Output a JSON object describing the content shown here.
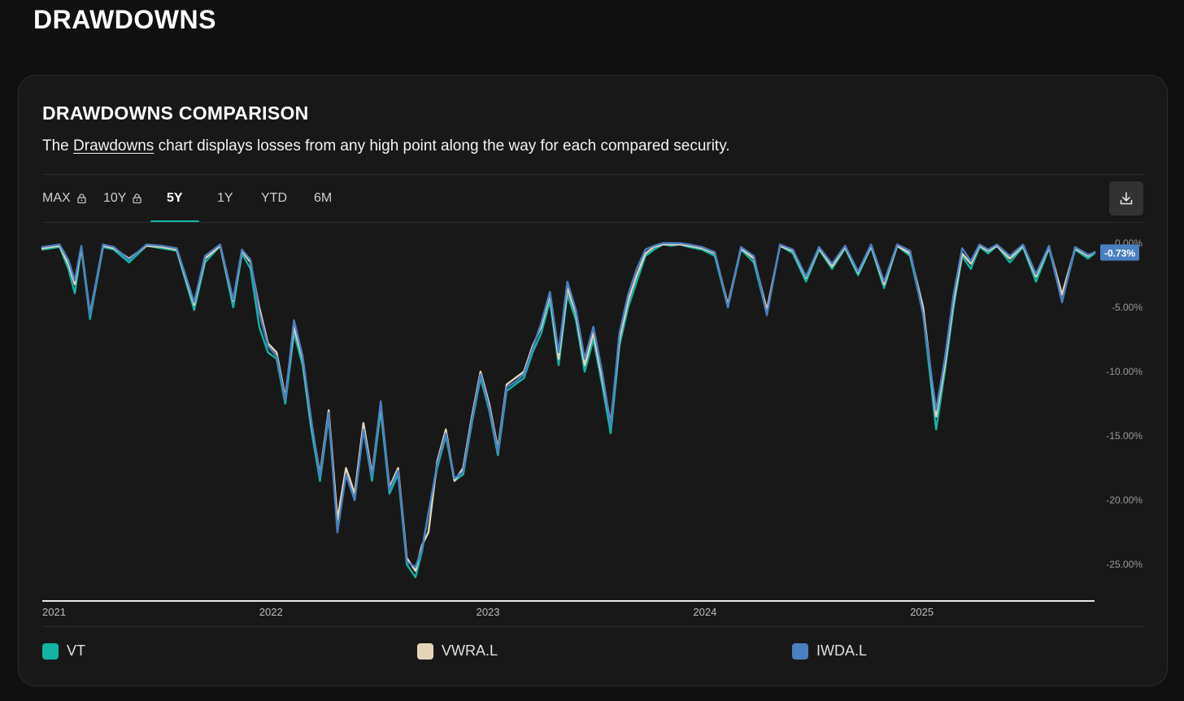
{
  "page": {
    "title": "DRAWDOWNS"
  },
  "card": {
    "title": "DRAWDOWNS COMPARISON",
    "desc_prefix": "The ",
    "desc_link": "Drawdowns",
    "desc_suffix": " chart displays losses from any high point along the way for each compared security."
  },
  "tabs": [
    {
      "label": "MAX",
      "locked": true,
      "active": false
    },
    {
      "label": "10Y",
      "locked": true,
      "active": false
    },
    {
      "label": "5Y",
      "locked": false,
      "active": true
    },
    {
      "label": "1Y",
      "locked": false,
      "active": false
    },
    {
      "label": "YTD",
      "locked": false,
      "active": false
    },
    {
      "label": "6M",
      "locked": false,
      "active": false
    }
  ],
  "toolbar": {
    "download_icon": "download-icon"
  },
  "colors": {
    "accent": "#14b3a4",
    "vt": "#14b3a4",
    "vwra": "#e6d4b8",
    "iwda": "#4a7fc1",
    "badge": "#4a7fc1"
  },
  "chart_data": {
    "type": "line",
    "title": "",
    "xlabel": "",
    "ylabel": "",
    "x_ticks": [
      "2021",
      "2022",
      "2023",
      "2024",
      "2025"
    ],
    "y_ticks": [
      "0.00%",
      "-5.00%",
      "-10.00%",
      "-15.00%",
      "-20.00%",
      "-25.00%"
    ],
    "ylim": [
      -27,
      0
    ],
    "xlim": [
      2021.0,
      2025.85
    ],
    "current_value_label": "-0.73%",
    "grid": false,
    "legend_position": "bottom",
    "series": [
      {
        "name": "VT",
        "color": "#14b3a4",
        "x": [
          2021.0,
          2021.08,
          2021.12,
          2021.15,
          2021.18,
          2021.22,
          2021.28,
          2021.33,
          2021.4,
          2021.48,
          2021.55,
          2021.62,
          2021.7,
          2021.75,
          2021.82,
          2021.88,
          2021.92,
          2021.96,
          2022.0,
          2022.04,
          2022.08,
          2022.12,
          2022.16,
          2022.2,
          2022.24,
          2022.28,
          2022.32,
          2022.36,
          2022.4,
          2022.44,
          2022.48,
          2022.52,
          2022.56,
          2022.6,
          2022.64,
          2022.68,
          2022.72,
          2022.75,
          2022.78,
          2022.82,
          2022.86,
          2022.9,
          2022.94,
          2022.98,
          2023.02,
          2023.06,
          2023.1,
          2023.14,
          2023.18,
          2023.22,
          2023.26,
          2023.3,
          2023.34,
          2023.38,
          2023.42,
          2023.46,
          2023.5,
          2023.54,
          2023.58,
          2023.62,
          2023.66,
          2023.7,
          2023.74,
          2023.78,
          2023.82,
          2023.86,
          2023.9,
          2023.94,
          2023.98,
          2024.04,
          2024.1,
          2024.16,
          2024.22,
          2024.28,
          2024.34,
          2024.4,
          2024.46,
          2024.52,
          2024.58,
          2024.64,
          2024.7,
          2024.76,
          2024.82,
          2024.88,
          2024.94,
          2025.0,
          2025.06,
          2025.12,
          2025.16,
          2025.2,
          2025.24,
          2025.28,
          2025.32,
          2025.36,
          2025.4,
          2025.46,
          2025.52,
          2025.58,
          2025.64,
          2025.7,
          2025.76,
          2025.82,
          2025.85
        ],
        "y": [
          -0.5,
          -0.3,
          -2.0,
          -3.9,
          -0.4,
          -5.9,
          -0.3,
          -0.5,
          -1.5,
          -0.2,
          -0.4,
          -0.6,
          -5.2,
          -1.5,
          -0.2,
          -5.0,
          -0.8,
          -2.0,
          -6.5,
          -8.5,
          -9.0,
          -12.5,
          -7.0,
          -9.5,
          -14.5,
          -18.5,
          -13.5,
          -22.0,
          -18.0,
          -20.0,
          -14.5,
          -18.5,
          -13.0,
          -19.5,
          -18.0,
          -25.0,
          -26.0,
          -24.0,
          -21.0,
          -17.5,
          -15.0,
          -18.5,
          -18.0,
          -14.0,
          -10.5,
          -13.0,
          -16.5,
          -11.5,
          -11.0,
          -10.5,
          -8.5,
          -7.0,
          -4.5,
          -9.5,
          -4.0,
          -6.0,
          -10.0,
          -7.5,
          -11.0,
          -14.8,
          -8.0,
          -5.0,
          -3.0,
          -1.0,
          -0.5,
          -0.1,
          -0.2,
          -0.1,
          -0.3,
          -0.5,
          -1.0,
          -5.0,
          -0.5,
          -1.5,
          -5.5,
          -0.2,
          -0.8,
          -3.0,
          -0.5,
          -2.0,
          -0.4,
          -2.5,
          -0.3,
          -3.5,
          -0.2,
          -1.0,
          -5.5,
          -14.5,
          -10.0,
          -5.0,
          -1.0,
          -2.0,
          -0.3,
          -0.8,
          -0.2,
          -1.5,
          -0.3,
          -3.0,
          -0.4,
          -4.5,
          -0.5,
          -1.2,
          -0.8
        ]
      },
      {
        "name": "VWRA.L",
        "color": "#e6d4b8",
        "x": [
          2021.0,
          2021.08,
          2021.12,
          2021.15,
          2021.18,
          2021.22,
          2021.28,
          2021.33,
          2021.4,
          2021.48,
          2021.55,
          2021.62,
          2021.7,
          2021.75,
          2021.82,
          2021.88,
          2021.92,
          2021.96,
          2022.0,
          2022.04,
          2022.08,
          2022.12,
          2022.16,
          2022.2,
          2022.24,
          2022.28,
          2022.32,
          2022.36,
          2022.4,
          2022.44,
          2022.48,
          2022.52,
          2022.56,
          2022.6,
          2022.64,
          2022.68,
          2022.72,
          2022.75,
          2022.78,
          2022.82,
          2022.86,
          2022.9,
          2022.94,
          2022.98,
          2023.02,
          2023.06,
          2023.1,
          2023.14,
          2023.18,
          2023.22,
          2023.26,
          2023.3,
          2023.34,
          2023.38,
          2023.42,
          2023.46,
          2023.5,
          2023.54,
          2023.58,
          2023.62,
          2023.66,
          2023.7,
          2023.74,
          2023.78,
          2023.82,
          2023.86,
          2023.9,
          2023.94,
          2023.98,
          2024.04,
          2024.1,
          2024.16,
          2024.22,
          2024.28,
          2024.34,
          2024.4,
          2024.46,
          2024.52,
          2024.58,
          2024.64,
          2024.7,
          2024.76,
          2024.82,
          2024.88,
          2024.94,
          2025.0,
          2025.06,
          2025.12,
          2025.16,
          2025.2,
          2025.24,
          2025.28,
          2025.32,
          2025.36,
          2025.4,
          2025.46,
          2025.52,
          2025.58,
          2025.64,
          2025.7,
          2025.76,
          2025.82,
          2025.85
        ],
        "y": [
          -0.4,
          -0.2,
          -1.6,
          -3.2,
          -0.3,
          -5.5,
          -0.2,
          -0.4,
          -1.2,
          -0.2,
          -0.3,
          -0.5,
          -4.8,
          -1.2,
          -0.2,
          -4.5,
          -0.6,
          -1.5,
          -5.0,
          -7.8,
          -8.5,
          -12.0,
          -6.5,
          -9.0,
          -14.0,
          -18.0,
          -13.0,
          -21.5,
          -17.5,
          -19.5,
          -14.0,
          -18.0,
          -12.5,
          -19.0,
          -17.5,
          -24.5,
          -25.5,
          -23.5,
          -22.5,
          -17.0,
          -14.5,
          -18.5,
          -17.5,
          -13.5,
          -10.0,
          -12.5,
          -16.0,
          -11.0,
          -10.5,
          -10.0,
          -8.0,
          -6.5,
          -4.0,
          -9.0,
          -3.5,
          -5.5,
          -9.5,
          -7.0,
          -10.5,
          -14.0,
          -7.5,
          -4.5,
          -2.5,
          -0.8,
          -0.3,
          -0.1,
          -0.1,
          -0.1,
          -0.2,
          -0.4,
          -0.8,
          -4.8,
          -0.4,
          -1.2,
          -5.2,
          -0.2,
          -0.6,
          -2.7,
          -0.4,
          -1.8,
          -0.3,
          -2.3,
          -0.2,
          -3.2,
          -0.2,
          -0.8,
          -5.0,
          -13.5,
          -9.5,
          -4.5,
          -0.8,
          -1.6,
          -0.2,
          -0.6,
          -0.2,
          -1.2,
          -0.2,
          -2.6,
          -0.3,
          -4.0,
          -0.4,
          -1.0,
          -0.7
        ]
      },
      {
        "name": "IWDA.L",
        "color": "#4a7fc1",
        "x": [
          2021.0,
          2021.08,
          2021.12,
          2021.15,
          2021.18,
          2021.22,
          2021.28,
          2021.33,
          2021.4,
          2021.48,
          2021.55,
          2021.62,
          2021.7,
          2021.75,
          2021.82,
          2021.88,
          2021.92,
          2021.96,
          2022.0,
          2022.04,
          2022.08,
          2022.12,
          2022.16,
          2022.2,
          2022.24,
          2022.28,
          2022.32,
          2022.36,
          2022.4,
          2022.44,
          2022.48,
          2022.52,
          2022.56,
          2022.6,
          2022.64,
          2022.68,
          2022.72,
          2022.75,
          2022.78,
          2022.82,
          2022.86,
          2022.9,
          2022.94,
          2022.98,
          2023.02,
          2023.06,
          2023.1,
          2023.14,
          2023.18,
          2023.22,
          2023.26,
          2023.3,
          2023.34,
          2023.38,
          2023.42,
          2023.46,
          2023.5,
          2023.54,
          2023.58,
          2023.62,
          2023.66,
          2023.7,
          2023.74,
          2023.78,
          2023.82,
          2023.86,
          2023.9,
          2023.94,
          2023.98,
          2024.04,
          2024.1,
          2024.16,
          2024.22,
          2024.28,
          2024.34,
          2024.4,
          2024.46,
          2024.52,
          2024.58,
          2024.64,
          2024.7,
          2024.76,
          2024.82,
          2024.88,
          2024.94,
          2025.0,
          2025.06,
          2025.12,
          2025.16,
          2025.2,
          2025.24,
          2025.28,
          2025.32,
          2025.36,
          2025.4,
          2025.46,
          2025.52,
          2025.58,
          2025.64,
          2025.7,
          2025.76,
          2025.82,
          2025.85
        ],
        "y": [
          -0.3,
          -0.1,
          -1.3,
          -2.9,
          -0.2,
          -5.6,
          -0.1,
          -0.3,
          -1.3,
          -0.1,
          -0.2,
          -0.4,
          -4.6,
          -1.0,
          -0.1,
          -4.4,
          -0.5,
          -1.3,
          -5.4,
          -8.0,
          -8.8,
          -12.2,
          -6.0,
          -8.8,
          -13.8,
          -18.2,
          -13.2,
          -22.5,
          -18.0,
          -20.0,
          -14.5,
          -18.2,
          -12.3,
          -19.2,
          -17.7,
          -24.8,
          -25.2,
          -23.8,
          -21.0,
          -17.2,
          -14.8,
          -18.3,
          -17.8,
          -13.8,
          -10.2,
          -12.8,
          -16.2,
          -11.2,
          -10.8,
          -10.2,
          -8.2,
          -6.2,
          -3.8,
          -8.5,
          -3.0,
          -5.2,
          -9.0,
          -6.5,
          -10.0,
          -14.2,
          -7.0,
          -4.0,
          -2.0,
          -0.5,
          -0.2,
          0.0,
          0.0,
          0.0,
          -0.1,
          -0.3,
          -0.7,
          -5.0,
          -0.3,
          -1.0,
          -5.6,
          -0.1,
          -0.5,
          -2.6,
          -0.3,
          -1.6,
          -0.2,
          -2.2,
          -0.1,
          -3.0,
          -0.1,
          -0.6,
          -5.6,
          -13.0,
          -9.0,
          -4.0,
          -0.4,
          -1.4,
          -0.1,
          -0.5,
          -0.1,
          -1.0,
          -0.1,
          -2.4,
          -0.2,
          -4.6,
          -0.3,
          -0.9,
          -0.73
        ]
      }
    ]
  },
  "legend": [
    {
      "label": "VT",
      "color": "#14b3a4"
    },
    {
      "label": "VWRA.L",
      "color": "#e6d4b8"
    },
    {
      "label": "IWDA.L",
      "color": "#4a7fc1"
    }
  ]
}
